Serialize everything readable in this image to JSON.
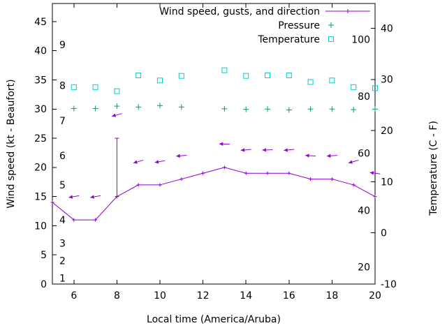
{
  "chart_data": {
    "type": "line",
    "title": "",
    "xlabel": "Local time (America/Aruba)",
    "ylabel_left": "Wind speed (kt - Beaufort)",
    "ylabel_right": "Temperature (C - F)",
    "legend": [
      {
        "label": "Wind speed, gusts, and direction",
        "sample": "line-plus",
        "color": "#9400d3"
      },
      {
        "label": "Pressure",
        "sample": "plus",
        "color": "#009e73"
      },
      {
        "label": "Temperature",
        "sample": "square",
        "color": "#00ced1"
      }
    ],
    "x_range": [
      5,
      20
    ],
    "y_left_range": [
      0,
      48.1
    ],
    "y_right_range": [
      -10,
      44.85
    ],
    "x_ticks": [
      6,
      8,
      10,
      12,
      14,
      16,
      18,
      20
    ],
    "y_left_ticks": [
      0,
      5,
      10,
      15,
      20,
      25,
      30,
      35,
      40,
      45
    ],
    "y_right_ticks": [
      -10,
      0,
      10,
      20,
      30,
      40
    ],
    "beaufort_scale_labels": [
      {
        "label": "1",
        "kt": 1
      },
      {
        "label": "2",
        "kt": 4
      },
      {
        "label": "3",
        "kt": 7
      },
      {
        "label": "4",
        "kt": 11
      },
      {
        "label": "5",
        "kt": 17
      },
      {
        "label": "6",
        "kt": 22
      },
      {
        "label": "7",
        "kt": 28
      },
      {
        "label": "8",
        "kt": 34
      },
      {
        "label": "9",
        "kt": 41
      }
    ],
    "fahrenheit_labels": [
      {
        "label": "20",
        "celsius": -6.7
      },
      {
        "label": "40",
        "celsius": 4.4
      },
      {
        "label": "60",
        "celsius": 15.6
      },
      {
        "label": "80",
        "celsius": 26.7
      },
      {
        "label": "100",
        "celsius": 37.8
      }
    ],
    "series": {
      "wind_speed": {
        "times": [
          5,
          6,
          7,
          8,
          9,
          10,
          11,
          12,
          13,
          14,
          15,
          16,
          17,
          18,
          19,
          20
        ],
        "knots": [
          14,
          11,
          11,
          15,
          17,
          17,
          18,
          19,
          20,
          19,
          19,
          19,
          18,
          18,
          17,
          15
        ]
      },
      "wind_gusts": {
        "times": [
          8
        ],
        "knots": [
          25
        ]
      },
      "wind_direction": {
        "times": [
          6,
          7,
          8,
          9,
          10,
          11,
          13,
          14,
          15,
          16,
          17,
          18,
          19,
          20
        ],
        "knots": [
          15,
          15,
          29,
          21,
          21,
          22,
          24,
          23,
          23,
          23,
          22,
          22,
          21,
          19
        ],
        "angles_deg": [
          190,
          190,
          195,
          196,
          190,
          185,
          178,
          185,
          182,
          186,
          176,
          184,
          196,
          172
        ]
      },
      "pressure": {
        "times": [
          6,
          7,
          8,
          9,
          10,
          11,
          13,
          14,
          15,
          16,
          17,
          18,
          19,
          20
        ],
        "values": [
          30.1,
          30.1,
          30.5,
          30.35,
          30.6,
          30.35,
          30.05,
          29.95,
          30.0,
          29.85,
          30.0,
          30.0,
          29.9,
          30.0
        ]
      },
      "temperature": {
        "times": [
          6,
          7,
          8,
          9,
          10,
          11,
          13,
          14,
          15,
          16,
          17,
          18,
          19,
          20
        ],
        "celsius": [
          28.5,
          28.5,
          27.7,
          30.8,
          29.8,
          30.7,
          31.8,
          30.7,
          30.8,
          30.8,
          29.5,
          29.8,
          28.5,
          28.3
        ]
      }
    },
    "grid": false,
    "legend_position": "top-right-inside",
    "axis_color": "#000000",
    "background": "#ffffff"
  }
}
